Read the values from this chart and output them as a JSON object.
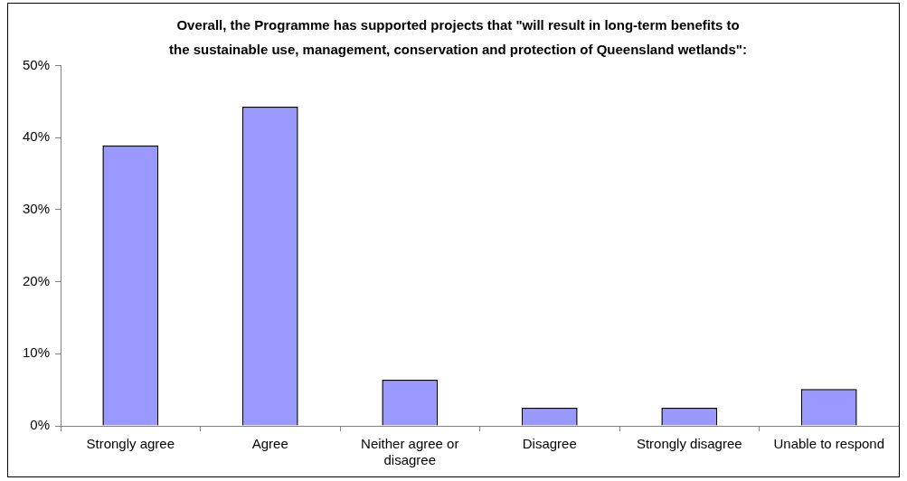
{
  "chart_data": {
    "type": "bar",
    "title": "Overall, the Programme has supported projects that \"will result in long-term benefits to the sustainable use, management, conservation and protection of Queensland wetlands\":",
    "categories": [
      "Strongly agree",
      "Agree",
      "Neither agree or disagree",
      "Disagree",
      "Strongly disagree",
      "Unable to respond"
    ],
    "values": [
      38.9,
      44.3,
      6.4,
      2.5,
      2.5,
      5.1
    ],
    "color": "#9999ff",
    "ylim": [
      0,
      50
    ],
    "yticks": [
      {
        "value": 0,
        "label": "0%"
      },
      {
        "value": 10,
        "label": "10%"
      },
      {
        "value": 20,
        "label": "20%"
      },
      {
        "value": 30,
        "label": "30%"
      },
      {
        "value": 40,
        "label": "40%"
      },
      {
        "value": 50,
        "label": "50%"
      }
    ],
    "grid": false,
    "legend": false
  }
}
